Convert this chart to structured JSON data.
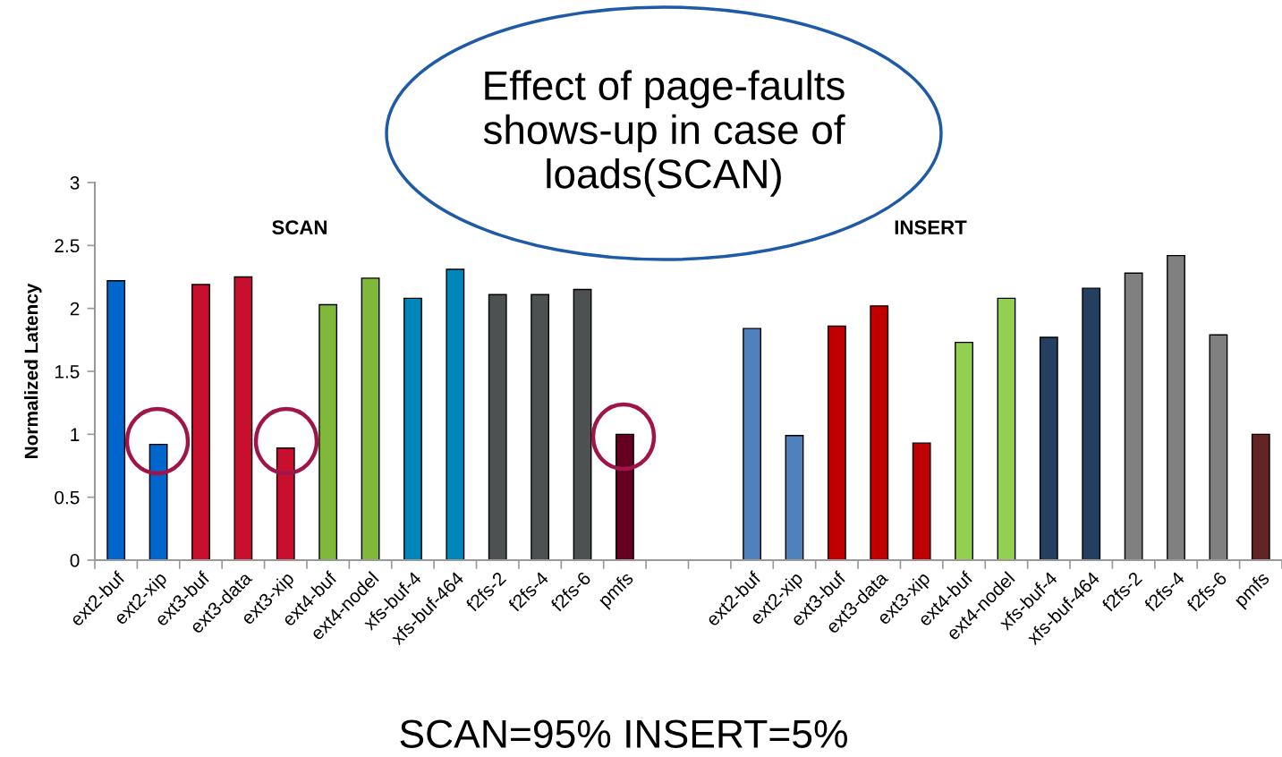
{
  "chart_data": {
    "type": "bar",
    "categories": [
      "ext2-buf",
      "ext2-xip",
      "ext3-buf",
      "ext3-data",
      "ext3-xip",
      "ext4-buf",
      "ext4-nodel",
      "xfs-buf-4",
      "xfs-buf-464",
      "f2fs-2",
      "f2fs-4",
      "f2fs-6",
      "pmfs",
      null,
      null,
      "ext2-buf",
      "ext2-xip",
      "ext3-buf",
      "ext3-data",
      "ext3-xip",
      "ext4-buf",
      "ext4-nodel",
      "xfs-buf-4",
      "xfs-buf-464",
      "f2fs-2",
      "f2fs-4",
      "f2fs-6",
      "pmfs"
    ],
    "values": [
      2.22,
      0.92,
      2.19,
      2.25,
      0.89,
      2.03,
      2.24,
      2.08,
      2.31,
      2.11,
      2.11,
      2.15,
      1.0,
      null,
      null,
      1.84,
      0.99,
      1.86,
      2.02,
      0.93,
      1.73,
      2.08,
      1.77,
      2.16,
      2.28,
      2.42,
      1.79,
      1.0
    ],
    "colors": [
      "#0066cc",
      "#0066cc",
      "#c8102e",
      "#c8102e",
      "#c8102e",
      "#80b83a",
      "#80b83a",
      "#0086b8",
      "#0086b8",
      "#4d5152",
      "#4d5152",
      "#4d5152",
      "#660022",
      null,
      null,
      "#4f81bd",
      "#4f81bd",
      "#c00000",
      "#c00000",
      "#c00000",
      "#92d050",
      "#92d050",
      "#243f60",
      "#243f60",
      "#808080",
      "#808080",
      "#808080",
      "#632523"
    ],
    "ylabel": "Normalized Latency",
    "ylim": [
      0,
      3
    ],
    "yticks": [
      0,
      0.5,
      1,
      1.5,
      2,
      2.5,
      3
    ],
    "annotations": [
      "Effect of page-faults\nshows-up in case of\nloads(SCAN)",
      "SCAN",
      "INSERT",
      "SCAN=95% INSERT=5%"
    ]
  }
}
